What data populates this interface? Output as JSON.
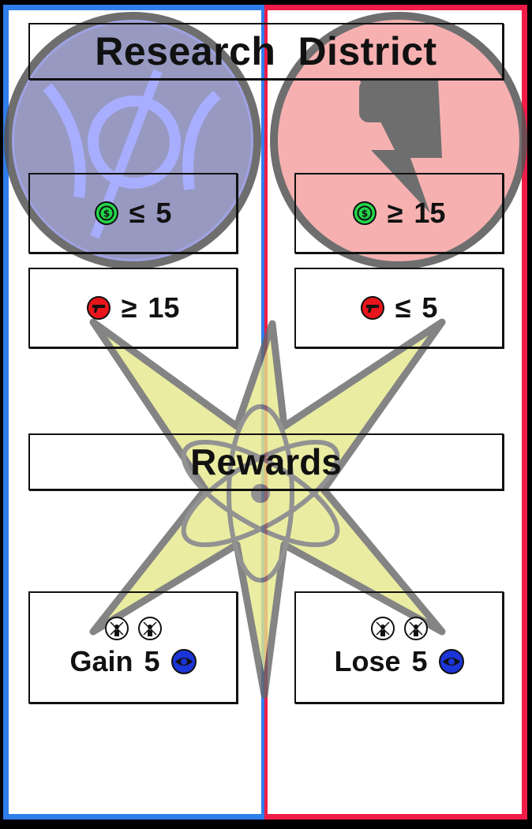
{
  "card": {
    "title_word1": "Research",
    "title_word2": "District",
    "rewards_heading": "Rewards",
    "colors": {
      "left_faction": "#2f7dea",
      "right_faction": "#f01b46",
      "star": "#e6e88a"
    }
  },
  "requirements": {
    "left": [
      {
        "icon": "money-icon",
        "op": "≤",
        "value": "5"
      },
      {
        "icon": "gun-icon",
        "op": "≥",
        "value": "15"
      }
    ],
    "right": [
      {
        "icon": "money-icon",
        "op": "≥",
        "value": "15"
      },
      {
        "icon": "gun-icon",
        "op": "≤",
        "value": "5"
      }
    ]
  },
  "rewards": {
    "left": {
      "icons": [
        "scientist-icon",
        "scientist-icon"
      ],
      "verb": "Gain",
      "amount": "5",
      "resource_icon": "eye-icon"
    },
    "right": {
      "icons": [
        "scientist-icon",
        "scientist-icon"
      ],
      "verb": "Lose",
      "amount": "5",
      "resource_icon": "eye-icon"
    }
  }
}
